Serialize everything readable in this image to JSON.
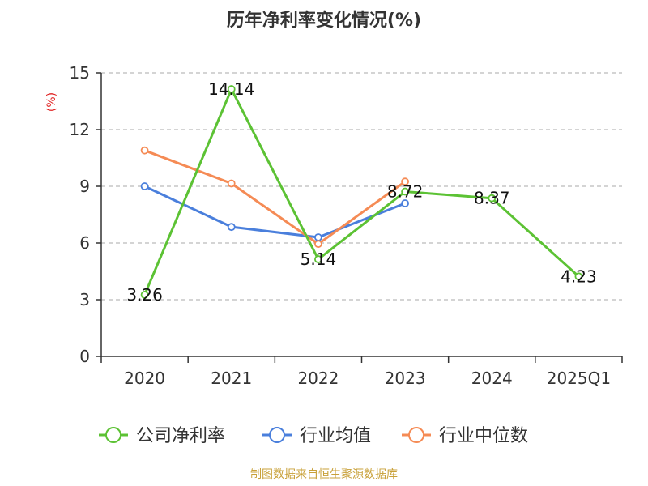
{
  "chart_data": {
    "type": "line",
    "title": "历年净利率变化情况(%)",
    "ylabel": "(%)",
    "ylim": [
      0,
      15
    ],
    "yticks": [
      0,
      3,
      6,
      9,
      12,
      15
    ],
    "categories": [
      "2020",
      "2021",
      "2022",
      "2023",
      "2024",
      "2025Q1"
    ],
    "grid": true,
    "legend_position": "bottom",
    "series": [
      {
        "name": "公司净利率",
        "color": "#5cc234",
        "values": [
          3.26,
          14.14,
          5.14,
          8.72,
          8.37,
          4.23
        ],
        "labels": [
          "3.26",
          "14.14",
          "5.14",
          "8.72",
          "8.37",
          "4.23"
        ]
      },
      {
        "name": "行业均值",
        "color": "#4a7fdc",
        "values": [
          9.0,
          6.85,
          6.3,
          8.1,
          null,
          null
        ]
      },
      {
        "name": "行业中位数",
        "color": "#f58b55",
        "values": [
          10.9,
          9.15,
          5.95,
          9.25,
          null,
          null
        ]
      }
    ]
  },
  "source": "制图数据来自恒生聚源数据库"
}
